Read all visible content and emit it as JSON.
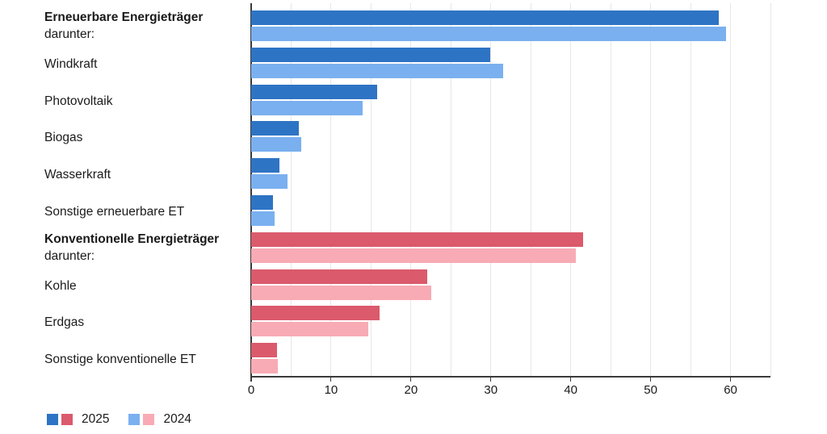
{
  "chart_data": {
    "type": "bar",
    "orientation": "horizontal",
    "title": "",
    "xlabel": "",
    "ylabel": "",
    "xlim": [
      0,
      65
    ],
    "x_ticks": [
      0,
      10,
      20,
      30,
      40,
      50,
      60
    ],
    "gridline_step": 5,
    "grid": true,
    "legend_position": "bottom-left",
    "categories": [
      {
        "label": "Erneuerbare Energieträger",
        "sublabel": "darunter:",
        "bold": true,
        "palette": "blue"
      },
      {
        "label": "Windkraft",
        "bold": false,
        "palette": "blue"
      },
      {
        "label": "Photovoltaik",
        "bold": false,
        "palette": "blue"
      },
      {
        "label": "Biogas",
        "bold": false,
        "palette": "blue"
      },
      {
        "label": "Wasserkraft",
        "bold": false,
        "palette": "blue"
      },
      {
        "label": "Sonstige erneuerbare ET",
        "bold": false,
        "palette": "blue"
      },
      {
        "label": "Konventionelle Energieträger",
        "sublabel": "darunter:",
        "bold": true,
        "palette": "red"
      },
      {
        "label": "Kohle",
        "bold": false,
        "palette": "red"
      },
      {
        "label": "Erdgas",
        "bold": false,
        "palette": "red"
      },
      {
        "label": "Sonstige konventionelle ET",
        "bold": false,
        "palette": "red"
      }
    ],
    "series": [
      {
        "name": "2025",
        "values": [
          58.5,
          29.9,
          15.8,
          6.0,
          3.5,
          2.7,
          41.5,
          22.0,
          16.1,
          3.2
        ]
      },
      {
        "name": "2024",
        "values": [
          59.4,
          31.5,
          13.9,
          6.3,
          4.5,
          2.9,
          40.6,
          22.5,
          14.7,
          3.3
        ]
      }
    ],
    "colors": {
      "blue_2025": "#2E74C4",
      "blue_2024": "#7AB0EF",
      "red_2025": "#DB5A6C",
      "red_2024": "#F8ABB4",
      "gridline": "#E7E7E7",
      "axis": "#3A3A3A",
      "text": "#1A1A1A"
    }
  },
  "legend": {
    "items": [
      {
        "label": "2025",
        "swatches": [
          "#2E74C4",
          "#DB5A6C"
        ]
      },
      {
        "label": "2024",
        "swatches": [
          "#7AB0EF",
          "#F8ABB4"
        ]
      }
    ]
  }
}
